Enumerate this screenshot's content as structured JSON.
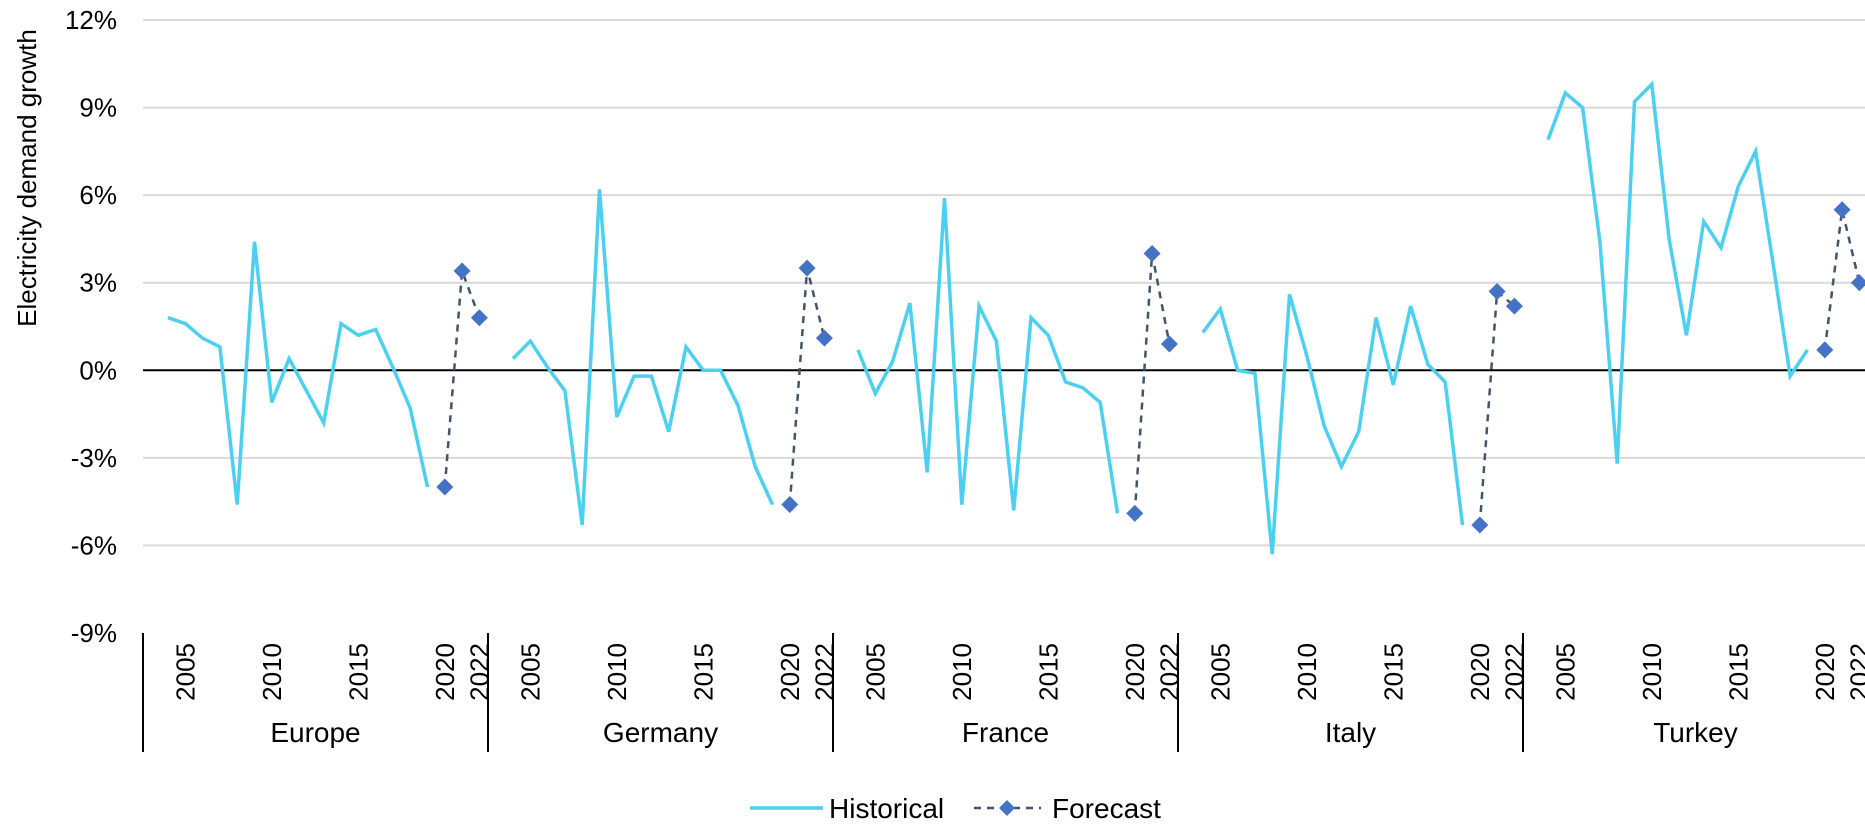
{
  "chart_data": {
    "type": "line",
    "ylabel": "Electricity demand growth",
    "xlabel": "",
    "ylim": [
      -9,
      12
    ],
    "y_ticks": [
      12,
      9,
      6,
      3,
      0,
      -3,
      -6,
      -9
    ],
    "y_tick_labels": [
      "12%",
      "9%",
      "6%",
      "3%",
      "0%",
      "-3%",
      "-6%",
      "-9%"
    ],
    "x_tick_labels": [
      "2005",
      "2010",
      "2015",
      "2020",
      "2022"
    ],
    "grid": true,
    "legend_position": "bottom",
    "legend": [
      "Historical",
      "Forecast"
    ],
    "colors": {
      "historical": "#4dd0f0",
      "forecast_line": "#44546a",
      "forecast_marker": "#4472c4",
      "grid": "#d9d9d9",
      "axis": "#000000"
    },
    "groups": [
      {
        "name": "Europe",
        "historical": {
          "years": [
            2004,
            2005,
            2006,
            2007,
            2008,
            2009,
            2010,
            2011,
            2012,
            2013,
            2014,
            2015,
            2016,
            2017,
            2018,
            2019,
            2020
          ],
          "values": [
            1.8,
            1.6,
            1.1,
            0.8,
            -4.6,
            4.4,
            -1.1,
            0.4,
            -0.7,
            -1.8,
            1.6,
            1.2,
            1.4,
            0.1,
            -1.3,
            -4.0,
            null
          ]
        },
        "forecast": {
          "years": [
            2020,
            2021,
            2022
          ],
          "values": [
            -4.0,
            3.4,
            1.8
          ]
        }
      },
      {
        "name": "Germany",
        "historical": {
          "years": [
            2004,
            2005,
            2006,
            2007,
            2008,
            2009,
            2010,
            2011,
            2012,
            2013,
            2014,
            2015,
            2016,
            2017,
            2018,
            2019,
            2020
          ],
          "values": [
            0.4,
            1.0,
            0.1,
            -0.7,
            -5.3,
            6.2,
            -1.6,
            -0.2,
            -0.2,
            -2.1,
            0.8,
            0.0,
            0.0,
            -1.2,
            -3.3,
            -4.6,
            null
          ]
        },
        "forecast": {
          "years": [
            2020,
            2021,
            2022
          ],
          "values": [
            -4.6,
            3.5,
            1.1
          ]
        }
      },
      {
        "name": "France",
        "historical": {
          "years": [
            2004,
            2005,
            2006,
            2007,
            2008,
            2009,
            2010,
            2011,
            2012,
            2013,
            2014,
            2015,
            2016,
            2017,
            2018,
            2019,
            2020
          ],
          "values": [
            0.7,
            -0.8,
            0.3,
            2.3,
            -3.5,
            5.9,
            -4.6,
            2.2,
            1.0,
            -4.8,
            1.8,
            1.2,
            -0.4,
            -0.6,
            -1.1,
            -4.9,
            null
          ]
        },
        "forecast": {
          "years": [
            2020,
            2021,
            2022
          ],
          "values": [
            -4.9,
            4.0,
            0.9
          ]
        }
      },
      {
        "name": "Italy",
        "historical": {
          "years": [
            2004,
            2005,
            2006,
            2007,
            2008,
            2009,
            2010,
            2011,
            2012,
            2013,
            2014,
            2015,
            2016,
            2017,
            2018,
            2019,
            2020
          ],
          "values": [
            1.3,
            2.1,
            0.0,
            -0.1,
            -6.3,
            2.6,
            0.5,
            -1.9,
            -3.3,
            -2.1,
            1.8,
            -0.5,
            2.2,
            0.2,
            -0.4,
            -5.3,
            null
          ]
        },
        "forecast": {
          "years": [
            2020,
            2021,
            2022
          ],
          "values": [
            -5.3,
            2.7,
            2.2
          ]
        }
      },
      {
        "name": "Turkey",
        "historical": {
          "years": [
            2004,
            2005,
            2006,
            2007,
            2008,
            2009,
            2010,
            2011,
            2012,
            2013,
            2014,
            2015,
            2016,
            2017,
            2018,
            2019,
            2020
          ],
          "values": [
            7.9,
            9.5,
            9.0,
            4.4,
            -3.2,
            9.2,
            9.8,
            4.5,
            1.2,
            5.1,
            4.2,
            6.3,
            7.5,
            3.7,
            -0.2,
            0.7,
            null
          ]
        },
        "forecast": {
          "years": [
            2020,
            2021,
            2022
          ],
          "values": [
            0.7,
            5.5,
            3.0
          ]
        }
      }
    ]
  }
}
